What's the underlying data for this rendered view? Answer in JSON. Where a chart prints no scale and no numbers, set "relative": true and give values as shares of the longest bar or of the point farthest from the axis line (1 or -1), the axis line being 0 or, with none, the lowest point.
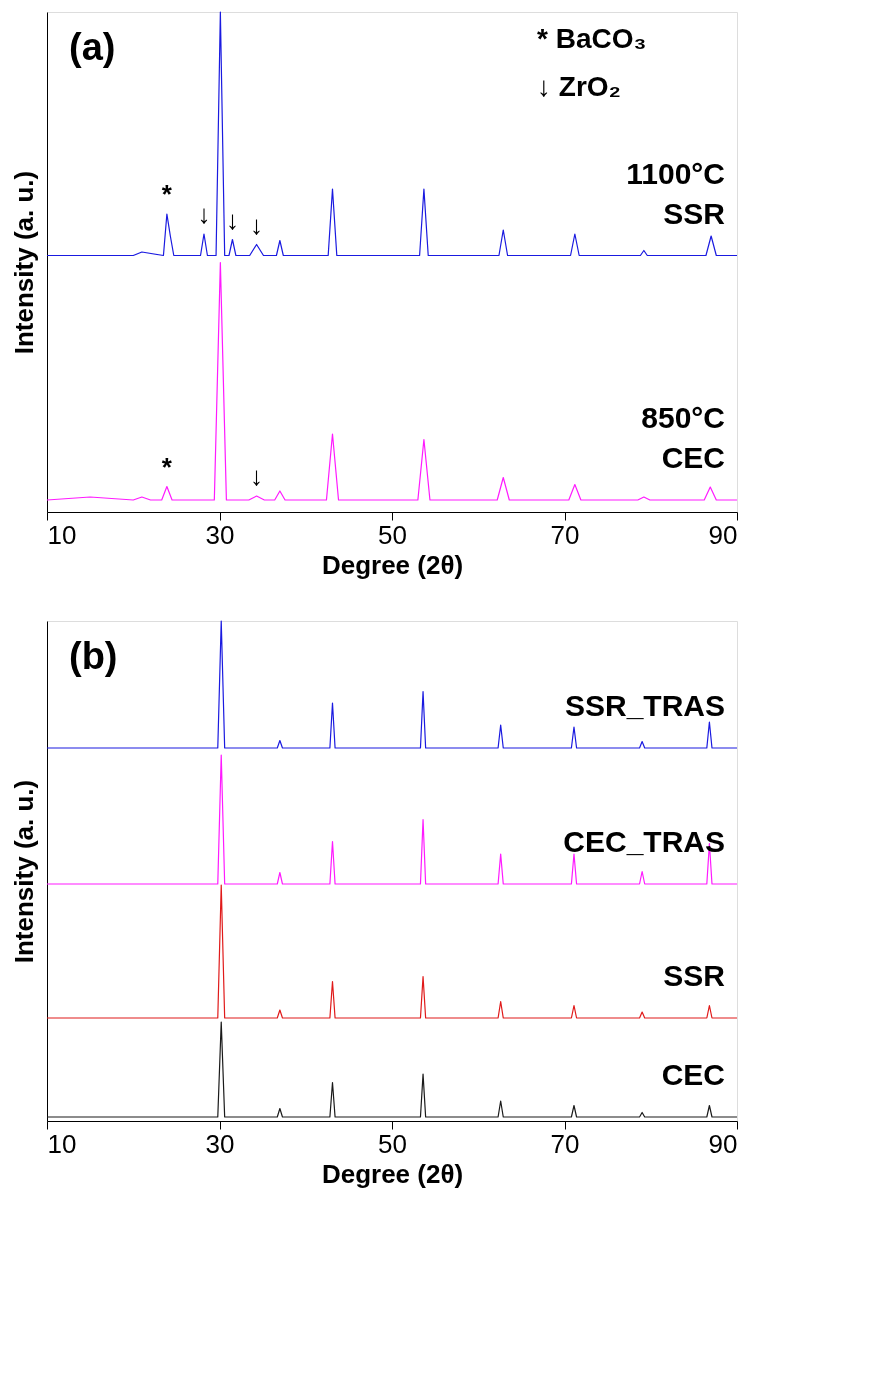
{
  "chart_data": [
    {
      "type": "line",
      "title": "(a)",
      "relative": true,
      "xlabel": "Degree (2θ)",
      "ylabel": "Intensity (a. u.)",
      "xlim": [
        10,
        90
      ],
      "xticks": [
        10,
        30,
        50,
        70,
        90
      ],
      "grid": false,
      "line_style": "solid",
      "series": [
        {
          "name": "1100°C\nSSR",
          "color": "#1a1ae0",
          "x": [
            10,
            15,
            20,
            21,
            23.5,
            23.9,
            24.3,
            24.7,
            27.8,
            28.2,
            28.6,
            29.6,
            30.1,
            30.6,
            31.1,
            31.5,
            31.9,
            33.5,
            34.3,
            35.1,
            36.6,
            37,
            37.4,
            42.6,
            43.1,
            43.6,
            53.2,
            53.7,
            54.2,
            62.4,
            62.9,
            63.4,
            70.7,
            71.2,
            71.7,
            78.8,
            79.2,
            79.6,
            86.4,
            87,
            87.6,
            90
          ],
          "values": [
            0.513,
            0.513,
            0.513,
            0.52,
            0.513,
            0.596,
            0.552,
            0.513,
            0.513,
            0.556,
            0.513,
            0.513,
            1.0,
            0.513,
            0.513,
            0.545,
            0.513,
            0.513,
            0.535,
            0.513,
            0.513,
            0.543,
            0.513,
            0.513,
            0.646,
            0.513,
            0.513,
            0.646,
            0.513,
            0.513,
            0.564,
            0.513,
            0.513,
            0.556,
            0.513,
            0.513,
            0.523,
            0.513,
            0.513,
            0.552,
            0.513,
            0.513
          ]
        },
        {
          "name": "850°C\nCEC",
          "color": "#ff1aff",
          "x": [
            10,
            15,
            20,
            21,
            22,
            23.3,
            23.9,
            24.5,
            29.4,
            30.1,
            30.8,
            33.4,
            34.3,
            35.2,
            36.4,
            37,
            37.6,
            42.4,
            43.1,
            43.8,
            53,
            53.7,
            54.4,
            62.2,
            62.9,
            63.6,
            70.5,
            71.2,
            71.9,
            78.5,
            79.2,
            79.9,
            86.2,
            86.9,
            87.6,
            90
          ],
          "values": [
            0.024,
            0.03,
            0.024,
            0.03,
            0.024,
            0.024,
            0.051,
            0.024,
            0.024,
            0.499,
            0.024,
            0.024,
            0.032,
            0.024,
            0.024,
            0.042,
            0.024,
            0.024,
            0.156,
            0.024,
            0.024,
            0.145,
            0.024,
            0.024,
            0.069,
            0.024,
            0.024,
            0.055,
            0.024,
            0.024,
            0.03,
            0.024,
            0.024,
            0.05,
            0.024,
            0.024
          ]
        }
      ],
      "annotations": [
        "* BaCO₃",
        "↓ ZrO₂",
        {
          "text": "*",
          "x": 23.9,
          "y": 0.596
        },
        {
          "text": "↓",
          "x": 28.2,
          "y": 0.556
        },
        {
          "text": "↓",
          "x": 31.5,
          "y": 0.545
        },
        {
          "text": "↓",
          "x": 34.3,
          "y": 0.535
        },
        {
          "text": "*",
          "x": 23.9,
          "y": 0.051
        },
        {
          "text": "↓",
          "x": 34.3,
          "y": 0.032
        }
      ]
    },
    {
      "type": "line",
      "title": "(b)",
      "relative": true,
      "xlabel": "Degree (2θ)",
      "ylabel": "Intensity (a. u.)",
      "xlim": [
        10,
        90
      ],
      "xticks": [
        10,
        30,
        50,
        70,
        90
      ],
      "grid": false,
      "line_style": "solid",
      "x": [
        10,
        29.8,
        30.2,
        30.6,
        36.7,
        37,
        37.3,
        42.8,
        43.1,
        43.4,
        53.3,
        53.6,
        53.9,
        62.3,
        62.6,
        62.9,
        70.8,
        71.1,
        71.4,
        78.7,
        79,
        79.3,
        86.5,
        86.8,
        87.1,
        90
      ],
      "series": [
        {
          "name": "SSR_TRAS",
          "color": "#1a1ae0",
          "values": [
            0.746,
            0.746,
            1.0,
            0.746,
            0.746,
            0.761,
            0.746,
            0.746,
            0.836,
            0.746,
            0.746,
            0.859,
            0.746,
            0.746,
            0.792,
            0.746,
            0.746,
            0.788,
            0.746,
            0.746,
            0.759,
            0.746,
            0.746,
            0.798,
            0.746,
            0.746
          ]
        },
        {
          "name": "CEC_TRAS",
          "color": "#ff1aff",
          "values": [
            0.474,
            0.474,
            0.732,
            0.474,
            0.474,
            0.497,
            0.474,
            0.474,
            0.559,
            0.474,
            0.474,
            0.603,
            0.474,
            0.474,
            0.534,
            0.474,
            0.474,
            0.534,
            0.474,
            0.474,
            0.499,
            0.474,
            0.474,
            0.555,
            0.474,
            0.474
          ]
        },
        {
          "name": "SSR",
          "color": "#e01a1a",
          "values": [
            0.206,
            0.206,
            0.472,
            0.206,
            0.206,
            0.222,
            0.206,
            0.206,
            0.279,
            0.206,
            0.206,
            0.289,
            0.206,
            0.206,
            0.239,
            0.206,
            0.206,
            0.231,
            0.206,
            0.206,
            0.218,
            0.206,
            0.206,
            0.231,
            0.206,
            0.206
          ]
        },
        {
          "name": "CEC",
          "color": "#1a1a1a",
          "values": [
            0.008,
            0.008,
            0.198,
            0.008,
            0.008,
            0.025,
            0.008,
            0.008,
            0.077,
            0.008,
            0.008,
            0.094,
            0.008,
            0.008,
            0.04,
            0.008,
            0.008,
            0.031,
            0.008,
            0.008,
            0.017,
            0.008,
            0.008,
            0.031,
            0.008,
            0.008
          ]
        }
      ]
    }
  ]
}
